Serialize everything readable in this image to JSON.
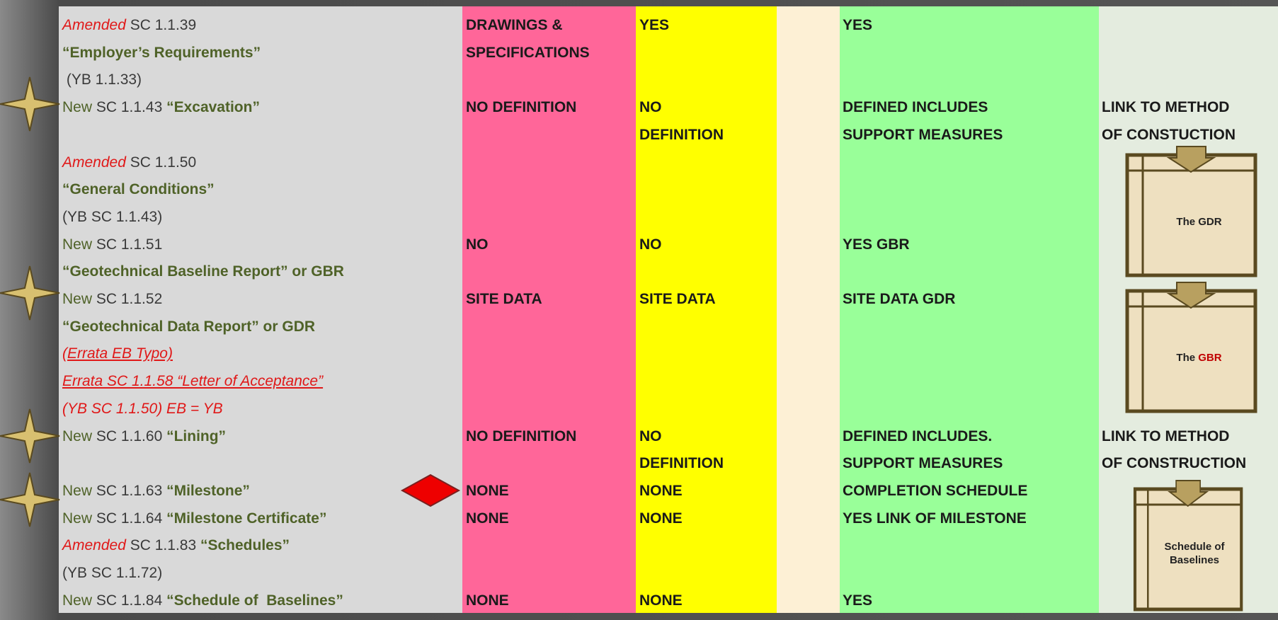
{
  "rows": [
    {
      "clause": [
        {
          "text": "Amended",
          "style": "amended"
        },
        {
          "text": " SC 1.1.39",
          "style": "ref"
        }
      ],
      "pink": "DRAWINGS &",
      "yellow": "YES",
      "green": "YES"
    },
    {
      "clause": [
        {
          "text": "“Employer’s Requirements”",
          "style": "title"
        }
      ],
      "pink": "SPECIFICATIONS"
    },
    {
      "clause": [
        {
          "text": " (YB 1.1.33)",
          "style": "ref"
        }
      ]
    },
    {
      "clause": [
        {
          "text": "New",
          "style": "new"
        },
        {
          "text": " SC 1.1.43 ",
          "style": "ref"
        },
        {
          "text": "“Excavation”",
          "style": "title"
        }
      ],
      "pink": "NO DEFINITION",
      "yellow": "NO",
      "green": "DEFINED INCLUDES",
      "note": "LINK TO METHOD"
    },
    {
      "clause": [],
      "yellow": "DEFINITION",
      "green": "SUPPORT MEASURES",
      "note": "OF CONSTUCTION"
    },
    {
      "clause": [
        {
          "text": "Amended",
          "style": "amended"
        },
        {
          "text": " SC 1.1.50",
          "style": "ref"
        }
      ]
    },
    {
      "clause": [
        {
          "text": "“General Conditions”",
          "style": "title"
        }
      ]
    },
    {
      "clause": [
        {
          "text": "(YB SC 1.1.43)",
          "style": "ref"
        }
      ]
    },
    {
      "clause": [
        {
          "text": "New",
          "style": "new"
        },
        {
          "text": " SC 1.1.51",
          "style": "ref"
        }
      ],
      "pink": "NO",
      "yellow": "NO",
      "green": "YES GBR"
    },
    {
      "clause": [
        {
          "text": "“Geotechnical Baseline Report” or GBR",
          "style": "title"
        }
      ]
    },
    {
      "clause": [
        {
          "text": "New",
          "style": "new"
        },
        {
          "text": " SC 1.1.52",
          "style": "ref"
        }
      ],
      "pink": "SITE DATA",
      "yellow": "SITE DATA",
      "green": "SITE DATA GDR"
    },
    {
      "clause": [
        {
          "text": "“Geotechnical Data Report” or GDR",
          "style": "title"
        }
      ]
    },
    {
      "clause": [
        {
          "text": "(Errata EB Typo)",
          "style": "errata"
        }
      ]
    },
    {
      "clause": [
        {
          "text": "Errata SC 1.1.58 “Letter of Acceptance”",
          "style": "errata"
        }
      ]
    },
    {
      "clause": [
        {
          "text": "(YB SC 1.1.50) EB = YB",
          "style": "errata-plain"
        }
      ]
    },
    {
      "clause": [
        {
          "text": "New",
          "style": "new"
        },
        {
          "text": " SC 1.1.60 ",
          "style": "ref"
        },
        {
          "text": "“Lining”",
          "style": "title"
        }
      ],
      "pink": "NO DEFINITION",
      "yellow": "NO",
      "green": "DEFINED INCLUDES.",
      "note": "LINK TO METHOD"
    },
    {
      "clause": [],
      "yellow": "DEFINITION",
      "green": "SUPPORT MEASURES",
      "note": "OF CONSTRUCTION"
    },
    {
      "clause": [
        {
          "text": "New",
          "style": "new"
        },
        {
          "text": " SC 1.1.63 ",
          "style": "ref"
        },
        {
          "text": "“Milestone”",
          "style": "title"
        }
      ],
      "pink": "NONE",
      "yellow": "NONE",
      "green": "COMPLETION SCHEDULE"
    },
    {
      "clause": [
        {
          "text": "New",
          "style": "new"
        },
        {
          "text": " SC 1.1.64 ",
          "style": "ref"
        },
        {
          "text": "“Milestone Certificate”",
          "style": "title"
        }
      ],
      "pink": "NONE",
      "yellow": "NONE",
      "green": "YES LINK OF MILESTONE"
    },
    {
      "clause": [
        {
          "text": "Amended",
          "style": "amended"
        },
        {
          "text": " SC 1.1.83 ",
          "style": "ref"
        },
        {
          "text": "“Schedules”",
          "style": "title"
        }
      ]
    },
    {
      "clause": [
        {
          "text": "(YB SC 1.1.72)",
          "style": "ref"
        }
      ]
    },
    {
      "clause": [
        {
          "text": "New",
          "style": "new"
        },
        {
          "text": " SC 1.1.84 ",
          "style": "ref"
        },
        {
          "text": "“Schedule of  Baselines”",
          "style": "title"
        }
      ],
      "pink": "NONE",
      "yellow": "NONE",
      "green": "YES"
    }
  ],
  "diagrams": [
    {
      "label": [
        {
          "text": "The GDR"
        }
      ]
    },
    {
      "label": [
        {
          "text": "The "
        },
        {
          "text": "GBR",
          "style": "red"
        }
      ]
    },
    {
      "label": [
        {
          "text": "Schedule of"
        },
        {
          "text": "Baselines"
        }
      ]
    }
  ]
}
